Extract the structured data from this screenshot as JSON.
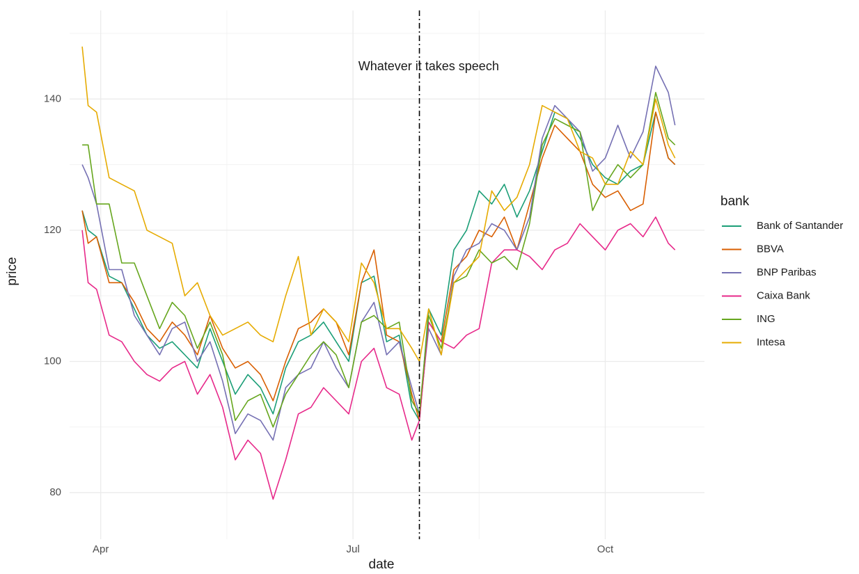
{
  "chart_data": {
    "type": "line",
    "x_label": "date",
    "y_label": "price",
    "legend_title": "bank",
    "legend": "right",
    "grid": true,
    "xlim": [
      3.63,
      11.18
    ],
    "xticks": [
      {
        "value": 4,
        "label": "Apr"
      },
      {
        "value": 7,
        "label": "Jul"
      },
      {
        "value": 10,
        "label": "Oct"
      }
    ],
    "x_minor_ticks": [
      5.5,
      8.5
    ],
    "ylim": [
      72.9,
      153.5
    ],
    "yticks": [
      80,
      100,
      120,
      140
    ],
    "y_minor_ticks": [
      90,
      110,
      130,
      150
    ],
    "vline": {
      "x": 7.79,
      "color": "#000000"
    },
    "annotations": [
      {
        "text": "Whatever it takes speech",
        "x": 7.9,
        "y": 144.9
      }
    ],
    "x": [
      3.78,
      3.85,
      3.95,
      4.1,
      4.25,
      4.4,
      4.55,
      4.7,
      4.85,
      5.0,
      5.15,
      5.3,
      5.45,
      5.6,
      5.75,
      5.9,
      6.05,
      6.2,
      6.35,
      6.5,
      6.65,
      6.8,
      6.95,
      7.1,
      7.25,
      7.4,
      7.55,
      7.7,
      7.79,
      7.9,
      8.05,
      8.2,
      8.35,
      8.5,
      8.65,
      8.8,
      8.95,
      9.1,
      9.25,
      9.4,
      9.55,
      9.7,
      9.85,
      10.0,
      10.15,
      10.3,
      10.45,
      10.6,
      10.75,
      10.83
    ],
    "series": [
      {
        "name": "Bank of Santander",
        "color": "#1b9e77",
        "values": [
          123,
          120,
          119,
          113,
          112,
          108,
          104,
          102,
          103,
          101,
          99,
          105,
          100,
          95,
          98,
          96,
          92,
          99,
          103,
          104,
          106,
          103,
          100,
          112,
          113,
          103,
          104,
          93,
          91,
          108,
          104,
          117,
          120,
          126,
          124,
          127,
          122,
          126,
          132,
          138,
          137,
          134,
          130,
          128,
          127,
          129,
          130,
          138,
          131,
          130
        ]
      },
      {
        "name": "BBVA",
        "color": "#d95f02",
        "values": [
          123,
          118,
          119,
          112,
          112,
          109,
          105,
          103,
          106,
          104,
          101,
          107,
          102,
          99,
          100,
          98,
          94,
          100,
          105,
          106,
          108,
          106,
          101,
          112,
          117,
          104,
          103,
          95,
          91,
          106,
          103,
          114,
          116,
          120,
          119,
          122,
          117,
          124,
          131,
          136,
          134,
          132,
          127,
          125,
          126,
          123,
          124,
          138,
          131,
          130
        ]
      },
      {
        "name": "BNP Paribas",
        "color": "#7570b3",
        "values": [
          130,
          128,
          124,
          114,
          114,
          107,
          104,
          101,
          105,
          106,
          100,
          103,
          97,
          89,
          92,
          91,
          88,
          96,
          98,
          99,
          103,
          99,
          96,
          106,
          109,
          101,
          103,
          96,
          92,
          105,
          101,
          113,
          117,
          118,
          121,
          120,
          117,
          122,
          134,
          139,
          137,
          135,
          129,
          131,
          136,
          131,
          135,
          145,
          141,
          136
        ]
      },
      {
        "name": "Caixa Bank",
        "color": "#e7298a",
        "values": [
          120,
          112,
          111,
          104,
          103,
          100,
          98,
          97,
          99,
          100,
          95,
          98,
          93,
          85,
          88,
          86,
          79,
          85,
          92,
          93,
          96,
          94,
          92,
          100,
          102,
          96,
          95,
          88,
          91,
          106,
          103,
          102,
          104,
          105,
          115,
          117,
          117,
          116,
          114,
          117,
          118,
          121,
          119,
          117,
          120,
          121,
          119,
          122,
          118,
          117
        ]
      },
      {
        "name": "ING",
        "color": "#66a61e",
        "values": [
          133,
          133,
          124,
          124,
          115,
          115,
          110,
          105,
          109,
          107,
          102,
          106,
          101,
          91,
          94,
          95,
          90,
          95,
          98,
          101,
          103,
          101,
          96,
          106,
          107,
          105,
          106,
          94,
          92,
          107,
          102,
          112,
          113,
          117,
          115,
          116,
          114,
          121,
          133,
          137,
          136,
          135,
          123,
          127,
          130,
          128,
          130,
          141,
          134,
          133
        ]
      },
      {
        "name": "Intesa",
        "color": "#e6ab02",
        "values": [
          148,
          139,
          138,
          128,
          127,
          126,
          120,
          119,
          118,
          110,
          112,
          107,
          104,
          105,
          106,
          104,
          103,
          110,
          116,
          104,
          108,
          106,
          103,
          115,
          112,
          105,
          105,
          102,
          100,
          108,
          101,
          112,
          114,
          116,
          126,
          123,
          125,
          130,
          139,
          138,
          137,
          132,
          131,
          127,
          127,
          132,
          130,
          140,
          133,
          131
        ]
      }
    ]
  }
}
